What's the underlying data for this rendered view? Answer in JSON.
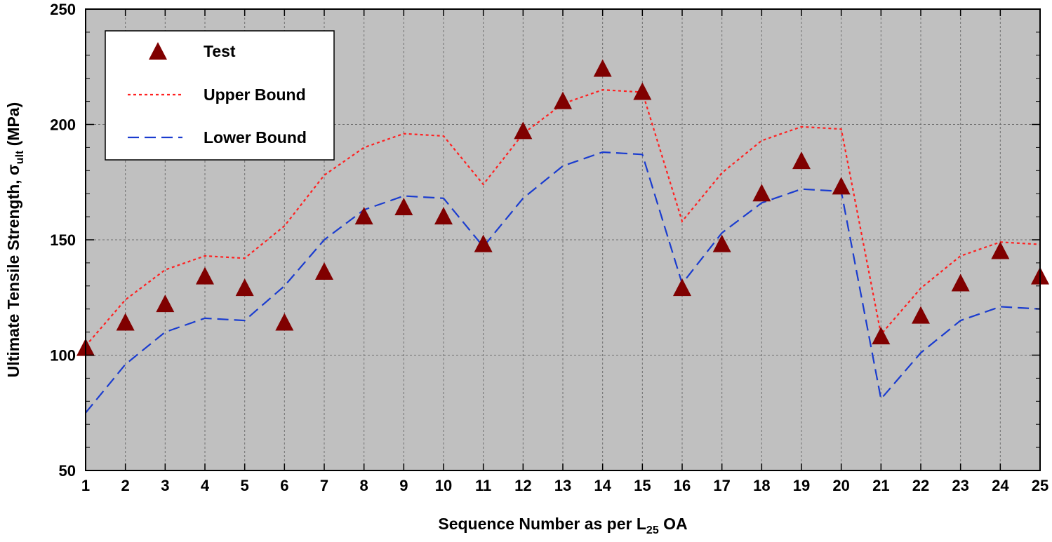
{
  "chart_data": {
    "type": "line",
    "title": "",
    "xlabel": {
      "main": "Sequence Number as per L",
      "sub": "25",
      "tail": " OA"
    },
    "ylabel": {
      "main": "Ultimate Tensile Strength, σ",
      "sub": "ult",
      "tail": " (MPa)"
    },
    "xlim": [
      1,
      25
    ],
    "ylim": [
      50,
      250
    ],
    "yticks": [
      50,
      100,
      150,
      200,
      250
    ],
    "grid": true,
    "legend_position": "top-left",
    "x": [
      1,
      2,
      3,
      4,
      5,
      6,
      7,
      8,
      9,
      10,
      11,
      12,
      13,
      14,
      15,
      16,
      17,
      18,
      19,
      20,
      21,
      22,
      23,
      24,
      25
    ],
    "series": [
      {
        "name": "Test",
        "style": "triangle-markers",
        "color": "#800000",
        "values": [
          103,
          114,
          122,
          134,
          129,
          114,
          136,
          160,
          164,
          160,
          148,
          197,
          210,
          224,
          214,
          129,
          148,
          170,
          184,
          173,
          108,
          117,
          131,
          145,
          134
        ]
      },
      {
        "name": "Upper Bound",
        "style": "dotted",
        "color": "#ff2020",
        "values": [
          104,
          124,
          137,
          143,
          142,
          156,
          178,
          190,
          196,
          195,
          174,
          196,
          209,
          215,
          214,
          158,
          179,
          193,
          199,
          198,
          109,
          129,
          143,
          149,
          148
        ]
      },
      {
        "name": "Lower Bound",
        "style": "dashed",
        "color": "#1a3ccf",
        "values": [
          75,
          96,
          110,
          116,
          115,
          130,
          150,
          163,
          169,
          168,
          147,
          168,
          182,
          188,
          187,
          131,
          153,
          166,
          172,
          171,
          81,
          101,
          115,
          121,
          120
        ]
      }
    ]
  }
}
